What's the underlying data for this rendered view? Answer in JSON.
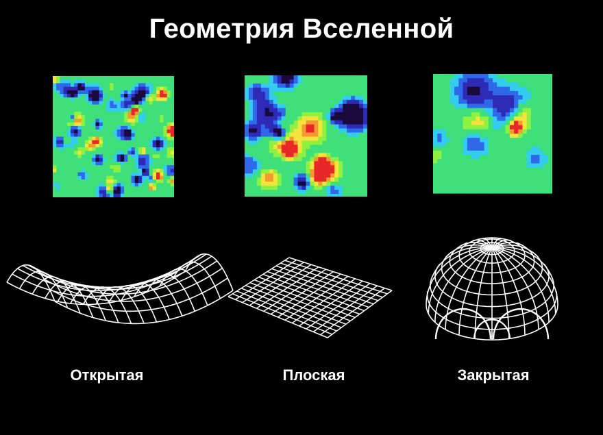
{
  "title": "Геометрия Вселенной",
  "colors": {
    "background": "#000000",
    "text": "#ffffff",
    "grid": "#ffffff"
  },
  "cmb_palette": [
    "#1a0a3c",
    "#2e2ab8",
    "#2f68e8",
    "#33cdf0",
    "#3fe07a",
    "#8ef040",
    "#f2e43a",
    "#f29a30",
    "#e82828"
  ],
  "geometries": [
    {
      "id": "open",
      "label": "Открытая",
      "map_feature_scale": "small",
      "surface": "saddle"
    },
    {
      "id": "flat",
      "label": "Плоская",
      "map_feature_scale": "medium",
      "surface": "plane"
    },
    {
      "id": "closed",
      "label": "Закрытая",
      "map_feature_scale": "large",
      "surface": "sphere"
    }
  ]
}
